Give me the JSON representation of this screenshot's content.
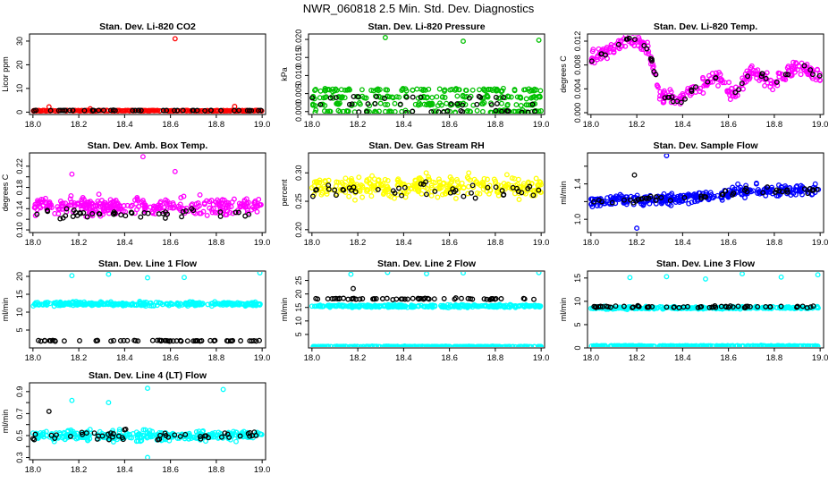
{
  "page": {
    "title": "NWR_060818  2.5 Min. Std. Dev. Diagnostics"
  },
  "chart_data": [
    {
      "type": "scatter",
      "title": "Stan. Dev. Li-820 CO2",
      "ylabel": "Licor ppm",
      "xlabel": "",
      "xlim": [
        17.985,
        19.015
      ],
      "ylim": [
        -1,
        33
      ],
      "xticks": [
        "18.0",
        "18.2",
        "18.4",
        "18.6",
        "18.8",
        "19.0"
      ],
      "xtick_values": [
        18.0,
        18.2,
        18.4,
        18.6,
        18.8,
        19.0
      ],
      "yticks": [
        0,
        10,
        20,
        30
      ],
      "series": [
        {
          "name": "main",
          "color": "#ff0000",
          "n": 280,
          "base": 0.6,
          "spread": 0.3,
          "outliers": [
            [
              18.07,
              2.2
            ],
            [
              18.25,
              1.4
            ],
            [
              18.62,
              31
            ],
            [
              18.88,
              2.4
            ]
          ]
        },
        {
          "name": "secondary",
          "color": "#000000",
          "n": 45,
          "base": 0.7,
          "spread": 0.2,
          "outliers": []
        }
      ]
    },
    {
      "type": "scatter",
      "title": "Stan. Dev. Li-820 Pressure",
      "ylabel": "kPa",
      "xlabel": "",
      "xlim": [
        17.985,
        19.015
      ],
      "ylim": [
        -0.0008,
        0.0215
      ],
      "xticks": [
        "18.0",
        "18.2",
        "18.4",
        "18.6",
        "18.8",
        "19.0"
      ],
      "xtick_values": [
        18.0,
        18.2,
        18.4,
        18.6,
        18.8,
        19.0
      ],
      "yticks": [
        0.0,
        0.005,
        0.01,
        0.015,
        0.02
      ],
      "ytick_labels": [
        "0.000",
        "0.005",
        "0.010",
        "0.015",
        "0.020"
      ],
      "series": [
        {
          "name": "main",
          "color": "#00c000",
          "n": 320,
          "levels": [
            0.0,
            0.002,
            0.004,
            0.006
          ],
          "jitter": 0.0004,
          "outliers": [
            [
              18.32,
              0.0205
            ],
            [
              18.66,
              0.0195
            ],
            [
              18.99,
              0.0198
            ]
          ]
        },
        {
          "name": "secondary",
          "color": "#000000",
          "n": 45,
          "levels": [
            0.0,
            0.002,
            0.004
          ],
          "jitter": 0.0003,
          "outliers": []
        }
      ]
    },
    {
      "type": "scatter",
      "title": "Stan. Dev. Li-820 Temp.",
      "ylabel": "degrees C",
      "xlabel": "",
      "xlim": [
        17.985,
        19.015
      ],
      "ylim": [
        -0.0003,
        0.0132
      ],
      "xticks": [
        "18.0",
        "18.2",
        "18.4",
        "18.6",
        "18.8",
        "19.0"
      ],
      "xtick_values": [
        18.0,
        18.2,
        18.4,
        18.6,
        18.8,
        19.0
      ],
      "yticks": [
        0.0,
        0.004,
        0.008,
        0.012
      ],
      "ytick_labels": [
        "0.000",
        "0.004",
        "0.008",
        "0.012"
      ],
      "trend": [
        [
          18.0,
          0.009
        ],
        [
          18.1,
          0.011
        ],
        [
          18.18,
          0.0125
        ],
        [
          18.25,
          0.011
        ],
        [
          18.3,
          0.003
        ],
        [
          18.38,
          0.002
        ],
        [
          18.45,
          0.004
        ],
        [
          18.55,
          0.006
        ],
        [
          18.62,
          0.003
        ],
        [
          18.7,
          0.007
        ],
        [
          18.8,
          0.005
        ],
        [
          18.9,
          0.008
        ],
        [
          19.0,
          0.006
        ]
      ],
      "series": [
        {
          "name": "main",
          "color": "#ff00ff",
          "n": 300,
          "spread": 0.0025,
          "outliers": []
        },
        {
          "name": "secondary",
          "color": "#000000",
          "n": 45,
          "spread": 0.0015,
          "outliers": []
        }
      ]
    },
    {
      "type": "scatter",
      "title": "Stan. Dev. Amb. Box Temp.",
      "ylabel": "degrees C",
      "xlabel": "",
      "xlim": [
        17.985,
        19.015
      ],
      "ylim": [
        0.095,
        0.245
      ],
      "xticks": [
        "18.0",
        "18.2",
        "18.4",
        "18.6",
        "18.8",
        "19.0"
      ],
      "xtick_values": [
        18.0,
        18.2,
        18.4,
        18.6,
        18.8,
        19.0
      ],
      "yticks": [
        0.1,
        0.12,
        0.14,
        0.16,
        0.18,
        0.2,
        0.22
      ],
      "ytick_labels": [
        "0.10",
        "",
        "0.14",
        "",
        "0.18",
        "",
        "0.22"
      ],
      "series": [
        {
          "name": "main",
          "color": "#ff00ff",
          "n": 320,
          "base": 0.145,
          "spread": 0.03,
          "outliers": [
            [
              18.48,
              0.238
            ],
            [
              18.62,
              0.21
            ],
            [
              18.17,
              0.205
            ]
          ]
        },
        {
          "name": "secondary",
          "color": "#000000",
          "n": 45,
          "base": 0.13,
          "spread": 0.02,
          "outliers": []
        }
      ]
    },
    {
      "type": "scatter",
      "title": "Stan. Dev. Gas Stream RH",
      "ylabel": "percent",
      "xlabel": "",
      "xlim": [
        17.985,
        19.015
      ],
      "ylim": [
        0.195,
        0.335
      ],
      "xticks": [
        "18.0",
        "18.2",
        "18.4",
        "18.6",
        "18.8",
        "19.0"
      ],
      "xtick_values": [
        18.0,
        18.2,
        18.4,
        18.6,
        18.8,
        19.0
      ],
      "yticks": [
        0.2,
        0.25,
        0.3
      ],
      "ytick_labels": [
        "0.20",
        "0.25",
        "0.30"
      ],
      "series": [
        {
          "name": "main",
          "color": "#ffff00",
          "n": 320,
          "base": 0.275,
          "spread": 0.035,
          "outliers": []
        },
        {
          "name": "secondary",
          "color": "#000000",
          "n": 45,
          "base": 0.27,
          "spread": 0.025,
          "outliers": []
        }
      ]
    },
    {
      "type": "scatter",
      "title": "Stan. Dev. Sample Flow",
      "ylabel": "ml/min",
      "xlabel": "",
      "xlim": [
        17.985,
        19.015
      ],
      "ylim": [
        0.85,
        1.75
      ],
      "xticks": [
        "18.0",
        "18.2",
        "18.4",
        "18.6",
        "18.8",
        "19.0"
      ],
      "xtick_values": [
        18.0,
        18.2,
        18.4,
        18.6,
        18.8,
        19.0
      ],
      "yticks": [
        1.0,
        1.2,
        1.4,
        1.6
      ],
      "ytick_labels": [
        "1.0",
        "",
        "1.4",
        ""
      ],
      "trend": [
        [
          18.0,
          1.2
        ],
        [
          18.5,
          1.25
        ],
        [
          18.65,
          1.32
        ],
        [
          19.0,
          1.33
        ]
      ],
      "series": [
        {
          "name": "main",
          "color": "#0000ff",
          "n": 320,
          "spread": 0.12,
          "outliers": [
            [
              18.33,
              1.72
            ],
            [
              18.2,
              0.9
            ]
          ]
        },
        {
          "name": "secondary",
          "color": "#000000",
          "n": 45,
          "spread": 0.08,
          "outliers": [
            [
              18.19,
              1.5
            ]
          ]
        }
      ]
    },
    {
      "type": "scatter",
      "title": "Stan. Dev. Line 1 Flow",
      "ylabel": "ml/min",
      "xlabel": "",
      "xlim": [
        17.985,
        19.015
      ],
      "ylim": [
        0.0,
        21.5
      ],
      "xticks": [
        "18.0",
        "18.2",
        "18.4",
        "18.6",
        "18.8",
        "19.0"
      ],
      "xtick_values": [
        18.0,
        18.2,
        18.4,
        18.6,
        18.8,
        19.0
      ],
      "yticks": [
        5,
        10,
        15,
        20
      ],
      "series": [
        {
          "name": "main",
          "color": "#00ffff",
          "n": 320,
          "base": 12.3,
          "spread": 1.1,
          "outliers": [
            [
              18.17,
              20.2
            ],
            [
              18.33,
              20.6
            ],
            [
              18.5,
              19.6
            ],
            [
              18.66,
              19.7
            ],
            [
              18.99,
              21.0
            ]
          ]
        },
        {
          "name": "secondary",
          "color": "#000000",
          "n": 60,
          "base": 2.0,
          "spread": 0.25,
          "outliers": []
        }
      ]
    },
    {
      "type": "scatter",
      "title": "Stan. Dev. Line 2 Flow",
      "ylabel": "ml/min",
      "xlabel": "",
      "xlim": [
        17.985,
        19.015
      ],
      "ylim": [
        0.0,
        28.5
      ],
      "xticks": [
        "18.0",
        "18.2",
        "18.4",
        "18.6",
        "18.8",
        "19.0"
      ],
      "xtick_values": [
        18.0,
        18.2,
        18.4,
        18.6,
        18.8,
        19.0
      ],
      "yticks": [
        5,
        10,
        15,
        20,
        25
      ],
      "series": [
        {
          "name": "band-high",
          "color": "#00ffff",
          "n": 300,
          "base": 15.5,
          "spread": 0.9,
          "outliers": [
            [
              18.17,
              27.3
            ],
            [
              18.33,
              28.0
            ],
            [
              18.5,
              27.5
            ],
            [
              18.66,
              27.8
            ],
            [
              18.99,
              27.9
            ]
          ]
        },
        {
          "name": "band-low",
          "color": "#00ffff",
          "n": 300,
          "base": 0.5,
          "spread": 0.25,
          "outliers": []
        },
        {
          "name": "secondary",
          "color": "#000000",
          "n": 60,
          "base": 18.2,
          "spread": 0.6,
          "outliers": [
            [
              18.18,
              22.0
            ]
          ]
        }
      ]
    },
    {
      "type": "scatter",
      "title": "Stan. Dev. Line 3 Flow",
      "ylabel": "ml/min",
      "xlabel": "",
      "xlim": [
        17.985,
        19.015
      ],
      "ylim": [
        0.0,
        16.5
      ],
      "xticks": [
        "18.0",
        "18.2",
        "18.4",
        "18.6",
        "18.8",
        "19.0"
      ],
      "xtick_values": [
        18.0,
        18.2,
        18.4,
        18.6,
        18.8,
        19.0
      ],
      "yticks": [
        0,
        5,
        10,
        15
      ],
      "series": [
        {
          "name": "band-high",
          "color": "#00ffff",
          "n": 300,
          "base": 8.6,
          "spread": 0.5,
          "outliers": [
            [
              18.17,
              15.1
            ],
            [
              18.33,
              15.3
            ],
            [
              18.5,
              14.8
            ],
            [
              18.66,
              15.9
            ],
            [
              18.83,
              15.2
            ],
            [
              18.99,
              15.7
            ]
          ]
        },
        {
          "name": "band-low",
          "color": "#00ffff",
          "n": 300,
          "base": 0.4,
          "spread": 0.2,
          "outliers": []
        },
        {
          "name": "secondary",
          "color": "#000000",
          "n": 60,
          "base": 8.8,
          "spread": 0.5,
          "outliers": []
        }
      ]
    },
    {
      "type": "scatter",
      "title": "Stan. Dev. Line 4 (LT) Flow",
      "ylabel": "ml/min",
      "xlabel": "",
      "xlim": [
        17.985,
        19.015
      ],
      "ylim": [
        0.28,
        0.98
      ],
      "xticks": [
        "18.0",
        "18.2",
        "18.4",
        "18.6",
        "18.8",
        "19.0"
      ],
      "xtick_values": [
        18.0,
        18.2,
        18.4,
        18.6,
        18.8,
        19.0
      ],
      "yticks": [
        0.3,
        0.4,
        0.5,
        0.6,
        0.7,
        0.8,
        0.9
      ],
      "ytick_labels": [
        "0.3",
        "",
        "0.5",
        "",
        "0.7",
        "",
        "0.9"
      ],
      "series": [
        {
          "name": "main",
          "color": "#00ffff",
          "n": 320,
          "base": 0.5,
          "spread": 0.09,
          "outliers": [
            [
              18.17,
              0.82
            ],
            [
              18.33,
              0.8
            ],
            [
              18.5,
              0.93
            ],
            [
              18.83,
              0.92
            ],
            [
              18.5,
              0.3
            ]
          ]
        },
        {
          "name": "secondary",
          "color": "#000000",
          "n": 50,
          "base": 0.5,
          "spread": 0.08,
          "outliers": [
            [
              18.07,
              0.72
            ]
          ]
        }
      ]
    }
  ]
}
